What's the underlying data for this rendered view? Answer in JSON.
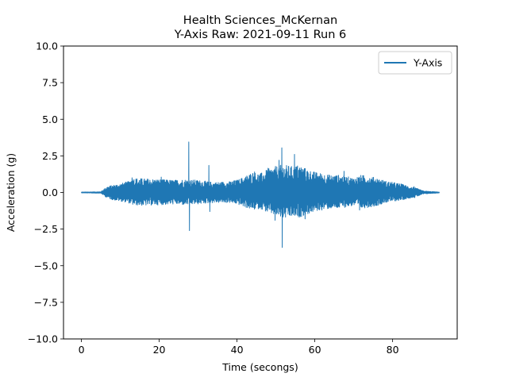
{
  "chart_data": {
    "type": "line",
    "title": "Health Sciences_McKernan",
    "subtitle": "Y-Axis Raw: 2021-09-11 Run 6",
    "xlabel": "Time (secongs)",
    "ylabel": "Acceleration (g)",
    "xlim": [
      -4.6,
      96.6
    ],
    "ylim": [
      -10.0,
      10.0
    ],
    "xticks": [
      0,
      20,
      40,
      60,
      80
    ],
    "yticks": [
      -10.0,
      -7.5,
      -5.0,
      -2.5,
      0.0,
      2.5,
      5.0,
      7.5,
      10.0
    ],
    "xtick_labels": [
      "0",
      "20",
      "40",
      "60",
      "80"
    ],
    "ytick_labels": [
      "−10.0",
      "−7.5",
      "−5.0",
      "−2.5",
      "0.0",
      "2.5",
      "5.0",
      "7.5",
      "10.0"
    ],
    "grid": false,
    "legend_position": "top-right",
    "color": "#1f77b4",
    "series": [
      {
        "name": "Y-Axis",
        "x_range": [
          0,
          92
        ],
        "envelope": {
          "t": [
            0,
            5,
            6.5,
            8,
            10,
            12,
            13,
            16,
            20,
            24,
            26,
            30,
            34,
            38,
            40,
            42,
            44,
            46,
            48,
            50,
            52,
            54,
            56,
            58,
            60,
            62,
            64,
            66,
            68,
            70,
            72,
            74,
            76,
            78,
            80,
            82,
            84,
            86,
            88,
            92
          ],
          "upper": [
            0.03,
            0.05,
            0.4,
            0.5,
            0.6,
            0.75,
            1.0,
            0.95,
            0.9,
            0.85,
            0.9,
            0.85,
            0.7,
            0.75,
            0.85,
            1.1,
            1.4,
            1.3,
            1.6,
            1.8,
            1.9,
            1.8,
            1.9,
            1.6,
            1.4,
            1.3,
            1.2,
            1.2,
            1.1,
            1.0,
            1.2,
            1.1,
            1.0,
            0.8,
            0.7,
            0.6,
            0.45,
            0.3,
            0.1,
            0.03
          ],
          "lower": [
            -0.03,
            -0.05,
            -0.35,
            -0.5,
            -0.6,
            -0.7,
            -0.85,
            -0.9,
            -0.85,
            -0.8,
            -0.85,
            -0.8,
            -0.7,
            -0.7,
            -0.8,
            -1.0,
            -1.2,
            -1.1,
            -1.4,
            -1.6,
            -1.8,
            -1.7,
            -1.7,
            -1.5,
            -1.3,
            -1.2,
            -1.1,
            -1.1,
            -1.0,
            -0.9,
            -1.1,
            -1.0,
            -0.9,
            -0.7,
            -0.6,
            -0.55,
            -0.4,
            -0.3,
            -0.1,
            -0.03
          ]
        },
        "peaks": [
          {
            "t": 13.0,
            "y": 1.0
          },
          {
            "t": 20.5,
            "y": 1.05
          },
          {
            "t": 27.6,
            "y": 3.45
          },
          {
            "t": 27.8,
            "y": -2.6
          },
          {
            "t": 32.8,
            "y": 1.85
          },
          {
            "t": 33.0,
            "y": -1.3
          },
          {
            "t": 44.5,
            "y": 1.4
          },
          {
            "t": 48.0,
            "y": 1.65
          },
          {
            "t": 49.8,
            "y": -1.9
          },
          {
            "t": 50.8,
            "y": 2.2
          },
          {
            "t": 51.5,
            "y": 3.05
          },
          {
            "t": 51.6,
            "y": -3.75
          },
          {
            "t": 54.8,
            "y": 2.6
          },
          {
            "t": 55.2,
            "y": -1.5
          },
          {
            "t": 57.5,
            "y": -1.8
          },
          {
            "t": 67.5,
            "y": 1.45
          },
          {
            "t": 71.5,
            "y": -1.2
          },
          {
            "t": 85.5,
            "y": 0.4
          },
          {
            "t": 85.7,
            "y": -0.35
          }
        ]
      }
    ]
  }
}
